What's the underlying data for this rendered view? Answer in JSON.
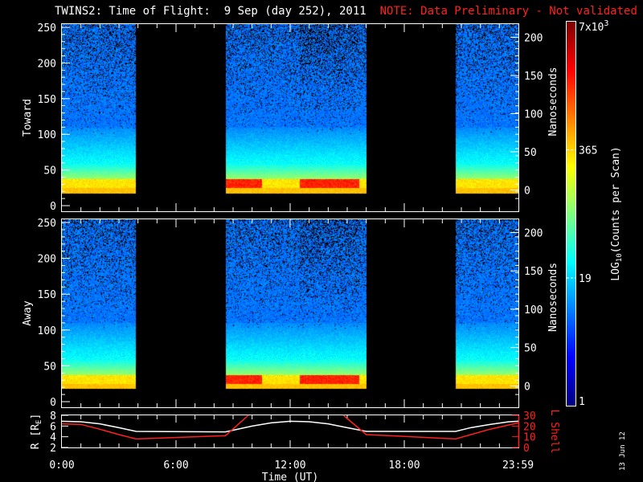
{
  "title": {
    "main": "TWINS2: Time of Flight:  9 Sep (day 252), 2011",
    "note": "NOTE: Data Preliminary - Not validated"
  },
  "date_stamp": "13 Jun 12",
  "colors": {
    "note": "#ff2020",
    "lshell": "#ff2020",
    "r": "#ffffff",
    "background": "#000000"
  },
  "chart_data": [
    {
      "type": "heatmap",
      "panel": "Toward",
      "ylabel": "Toward",
      "ylim": [
        0,
        250
      ],
      "yticks": [
        "0",
        "50",
        "100",
        "150",
        "200",
        "250"
      ],
      "y2label": "Nanoseconds",
      "y2ticks": [
        "0",
        "50",
        "100",
        "150",
        "200"
      ],
      "xlim_hours": [
        0,
        24
      ],
      "data_intervals_hours": [
        [
          0.0,
          3.9
        ],
        [
          8.6,
          16.0
        ],
        [
          20.7,
          24.0
        ]
      ]
    },
    {
      "type": "heatmap",
      "panel": "Away",
      "ylabel": "Away",
      "ylim": [
        0,
        250
      ],
      "yticks": [
        "0",
        "50",
        "100",
        "150",
        "200",
        "250"
      ],
      "y2label": "Nanoseconds",
      "y2ticks": [
        "0",
        "50",
        "100",
        "150",
        "200"
      ],
      "xlim_hours": [
        0,
        24
      ],
      "data_intervals_hours": [
        [
          0.0,
          3.9
        ],
        [
          8.6,
          16.0
        ],
        [
          20.7,
          24.0
        ]
      ]
    },
    {
      "type": "line",
      "ylabel": "R [R",
      "ylabel_sub": "E",
      "ylabel_end": "]",
      "ylim": [
        2,
        8
      ],
      "yticks": [
        "2",
        "4",
        "6",
        "8"
      ],
      "y2label": "L Shell",
      "y2lim": [
        0,
        30
      ],
      "y2ticks": [
        "0",
        "10",
        "20",
        "30"
      ],
      "xlabel": "Time (UT)",
      "xticks": [
        {
          "h": 0,
          "label": "0:00"
        },
        {
          "h": 6,
          "label": "6:00"
        },
        {
          "h": 12,
          "label": "12:00"
        },
        {
          "h": 18,
          "label": "18:00"
        },
        {
          "h": 23.98,
          "label": "23:59"
        }
      ],
      "series": [
        {
          "name": "R",
          "axis": "left",
          "x": [
            0,
            1,
            2,
            3,
            3.9,
            8.6,
            10,
            11,
            12,
            13,
            14,
            15,
            16,
            20.7,
            21.5,
            22.5,
            23.5,
            24
          ],
          "y": [
            6.9,
            6.8,
            6.4,
            5.7,
            5.0,
            4.9,
            6.0,
            6.6,
            6.9,
            6.8,
            6.4,
            5.7,
            5.0,
            5.0,
            5.7,
            6.3,
            6.8,
            6.9
          ]
        },
        {
          "name": "L Shell",
          "axis": "right",
          "x": [
            0,
            1,
            2,
            3,
            3.9,
            8.6,
            9.8
          ],
          "y": [
            22,
            21.5,
            17,
            12,
            8,
            11,
            30
          ]
        },
        {
          "name": "L Shell",
          "axis": "right",
          "x": [
            14.8,
            16,
            20.7,
            21.5,
            22.5,
            23.5,
            24
          ],
          "y": [
            30,
            12,
            8,
            12,
            17,
            21,
            23
          ]
        }
      ]
    },
    {
      "type": "colorbar",
      "label": "LOG",
      "label_sub": "10",
      "label_end": "(Counts per Scan)",
      "scale": "log",
      "range": [
        1,
        7000
      ],
      "ticks": [
        {
          "v": 1,
          "label": "1"
        },
        {
          "v": 19,
          "label": "19"
        },
        {
          "v": 365,
          "label": "365"
        },
        {
          "v": 7000,
          "label": "7x10",
          "sup": "3"
        }
      ]
    }
  ]
}
